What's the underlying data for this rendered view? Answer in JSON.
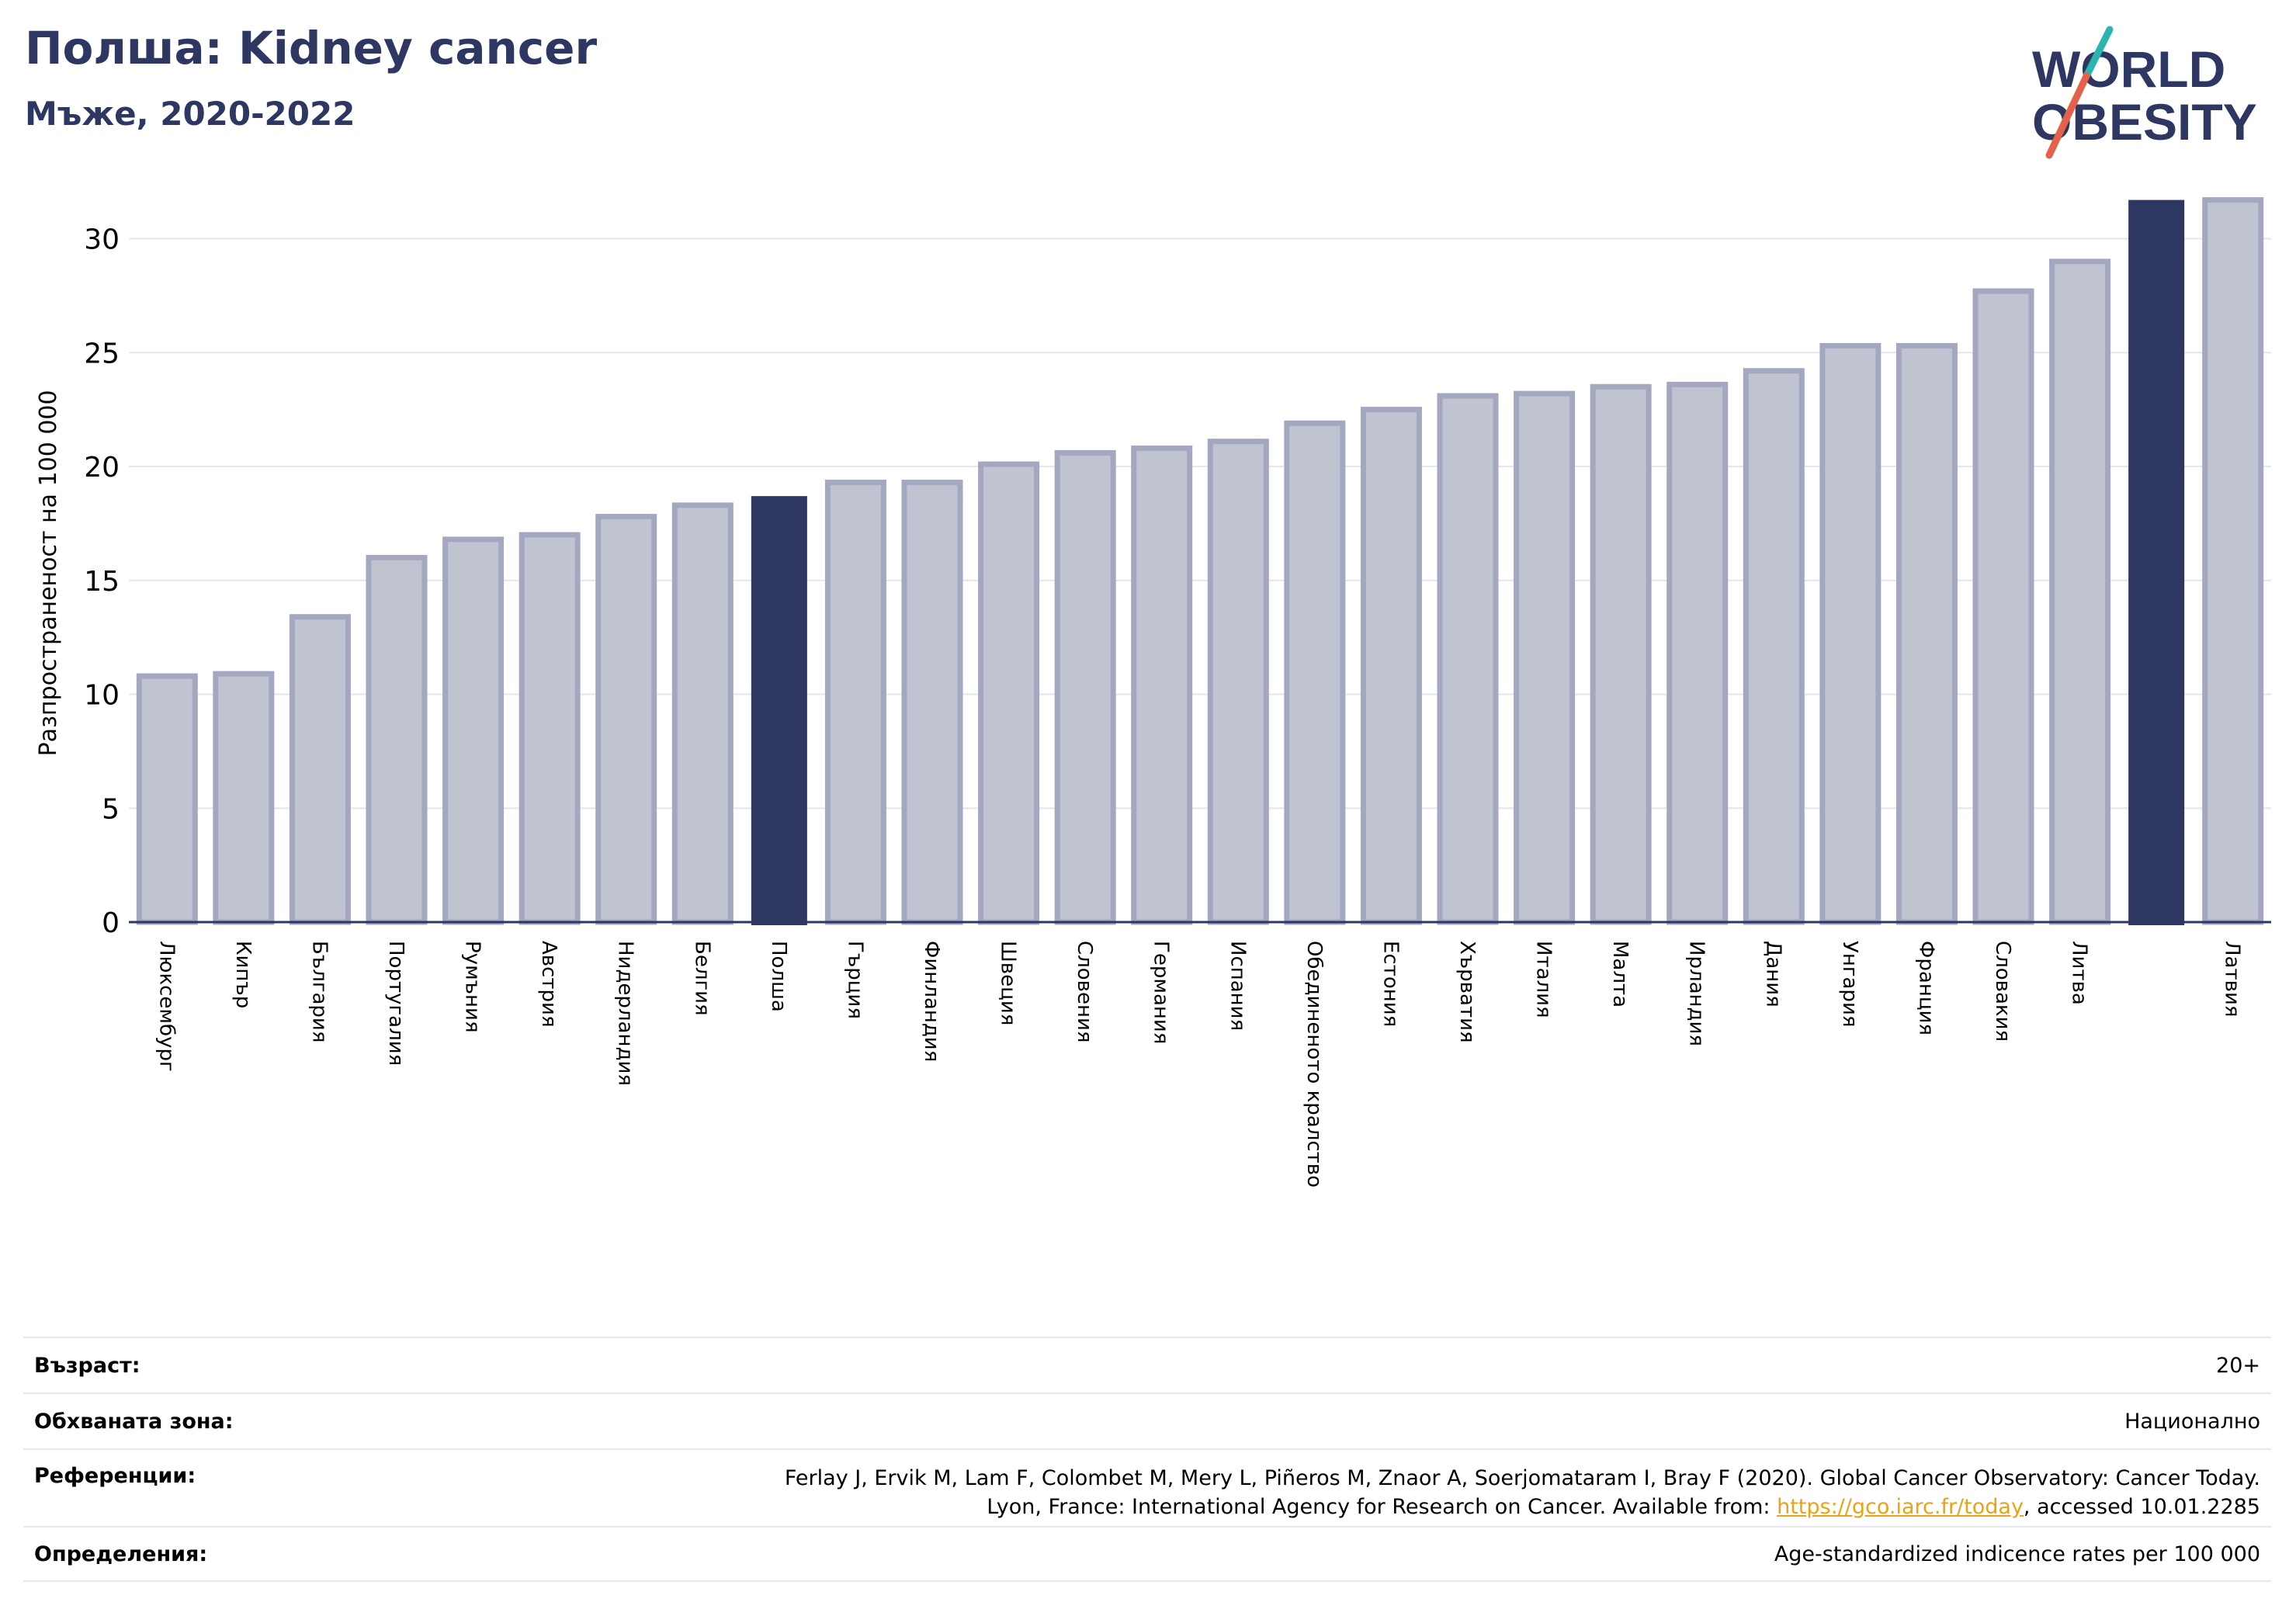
{
  "header": {
    "title": "Полша: Kidney cancer",
    "subtitle": "Мъже, 2020-2022"
  },
  "logo": {
    "line1": "WORLD",
    "line2": "OBESITY",
    "text_color": "#2d3762",
    "slash_colors": [
      "#2ab5b0",
      "#e5624a"
    ]
  },
  "chart_data": {
    "type": "bar",
    "ylabel": "Разпространеност  на 100 000",
    "ylim": [
      0,
      32
    ],
    "yticks": [
      0,
      5,
      10,
      15,
      20,
      25,
      30
    ],
    "grid": true,
    "categories": [
      "Люксембург",
      "Кипър",
      "България",
      "Португалия",
      "Румъния",
      "Австрия",
      "Нидерландия",
      "Белгия",
      "Полша",
      "Гърция",
      "Финландия",
      "Швеция",
      "Словения",
      "Германия",
      "Испания",
      "Обединеното кралство",
      "Естония",
      "Хърватия",
      "Италия",
      "Малта",
      "Ирландия",
      "Дания",
      "Унгария",
      "Франция",
      "Словакия",
      "Литва",
      "",
      "Латвия"
    ],
    "values": [
      10.8,
      10.9,
      13.4,
      16.0,
      16.8,
      17.0,
      17.8,
      18.3,
      18.7,
      19.3,
      19.3,
      20.1,
      20.6,
      20.8,
      21.1,
      21.9,
      22.5,
      23.1,
      23.2,
      23.5,
      23.6,
      24.2,
      25.3,
      25.3,
      27.7,
      29.0,
      31.7,
      31.7
    ],
    "highlight_indices": [
      8,
      26
    ],
    "colors": {
      "default_fill": "#c0c3d0",
      "default_stroke": "#a3a8c0",
      "highlight": "#2d3762",
      "grid": "#e4e6ee",
      "axis": "#2d3762"
    }
  },
  "info": {
    "rows": [
      {
        "label": "Възраст:",
        "value": "20+"
      },
      {
        "label": "Обхваната зона:",
        "value": "Национално"
      },
      {
        "label": "Референции:",
        "value_line1": "Ferlay J, Ervik M, Lam F, Colombet M, Mery L, Piñeros M, Znaor A, Soerjomataram I, Bray F (2020). Global Cancer Observatory: Cancer Today.",
        "value_line2_pre": "Lyon, France: International Agency for Research on Cancer. Available from: ",
        "link": "https://gco.iarc.fr/today",
        "value_line2_post": ", accessed 10.01.2285"
      },
      {
        "label": "Определения:",
        "value": "Age-standardized indicence rates per 100 000"
      }
    ]
  }
}
